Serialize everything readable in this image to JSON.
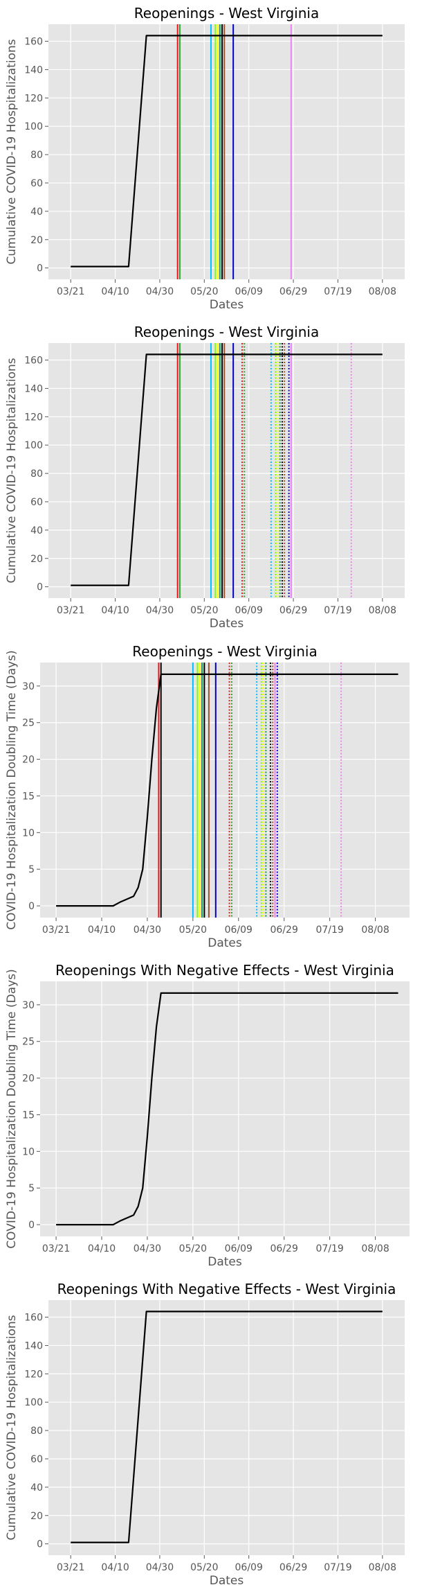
{
  "chart_data": [
    {
      "type": "line",
      "title": "Reopenings - West Virginia",
      "xlabel": "Dates",
      "ylabel": "Cumulative COVID-19 Hospitalizations",
      "xticks": [
        "03/21",
        "04/10",
        "04/30",
        "05/20",
        "06/09",
        "06/29",
        "07/19",
        "08/08"
      ],
      "yticks": [
        "0",
        "20",
        "40",
        "60",
        "80",
        "100",
        "120",
        "140",
        "160"
      ],
      "xlim": [
        -10,
        150
      ],
      "ylim": [
        -8,
        172
      ],
      "grid": true,
      "series": [
        {
          "color": "#000000",
          "points": [
            [
              0,
              1
            ],
            [
              26,
              1
            ],
            [
              34,
              164
            ],
            [
              140,
              164
            ]
          ]
        }
      ],
      "vlines": [
        {
          "x": 48,
          "color": "#e41a1c",
          "style": "solid"
        },
        {
          "x": 49,
          "color": "#2ca02c",
          "style": "solid"
        },
        {
          "x": 63,
          "color": "#00bfff",
          "style": "solid"
        },
        {
          "x": 65,
          "color": "#7fff00",
          "style": "solid"
        },
        {
          "x": 66,
          "color": "#ffff00",
          "style": "solid"
        },
        {
          "x": 67,
          "color": "#1a9850",
          "style": "solid"
        },
        {
          "x": 68,
          "color": "#000000",
          "style": "solid"
        },
        {
          "x": 69,
          "color": "#a0522d",
          "style": "solid"
        },
        {
          "x": 73,
          "color": "#0000cd",
          "style": "solid"
        },
        {
          "x": 99,
          "color": "#ee82ee",
          "style": "solid"
        }
      ]
    },
    {
      "type": "line",
      "title": "Reopenings - West Virginia",
      "xlabel": "Dates",
      "ylabel": "Cumulative COVID-19 Hospitalizations",
      "xticks": [
        "03/21",
        "04/10",
        "04/30",
        "05/20",
        "06/09",
        "06/29",
        "07/19",
        "08/08"
      ],
      "yticks": [
        "0",
        "20",
        "40",
        "60",
        "80",
        "100",
        "120",
        "140",
        "160"
      ],
      "xlim": [
        -10,
        150
      ],
      "ylim": [
        -8,
        172
      ],
      "grid": true,
      "series": [
        {
          "color": "#000000",
          "points": [
            [
              0,
              1
            ],
            [
              26,
              1
            ],
            [
              34,
              164
            ],
            [
              140,
              164
            ]
          ]
        }
      ],
      "vlines": [
        {
          "x": 48,
          "color": "#e41a1c",
          "style": "solid"
        },
        {
          "x": 49,
          "color": "#2ca02c",
          "style": "solid"
        },
        {
          "x": 63,
          "color": "#00bfff",
          "style": "solid"
        },
        {
          "x": 65,
          "color": "#7fff00",
          "style": "solid"
        },
        {
          "x": 66,
          "color": "#ffff00",
          "style": "solid"
        },
        {
          "x": 67,
          "color": "#1a9850",
          "style": "solid"
        },
        {
          "x": 68,
          "color": "#000000",
          "style": "solid"
        },
        {
          "x": 69,
          "color": "#a0522d",
          "style": "solid"
        },
        {
          "x": 73,
          "color": "#0000cd",
          "style": "solid"
        },
        {
          "x": 99,
          "color": "#ee82ee",
          "style": "solid"
        },
        {
          "x": 77,
          "color": "#e41a1c",
          "style": "dotted"
        },
        {
          "x": 78,
          "color": "#2ca02c",
          "style": "dotted"
        },
        {
          "x": 90,
          "color": "#00bfff",
          "style": "dotted"
        },
        {
          "x": 92,
          "color": "#7fff00",
          "style": "dotted"
        },
        {
          "x": 93,
          "color": "#ffff00",
          "style": "dotted"
        },
        {
          "x": 94,
          "color": "#1a9850",
          "style": "dotted"
        },
        {
          "x": 95,
          "color": "#000000",
          "style": "dotted"
        },
        {
          "x": 96,
          "color": "#a0522d",
          "style": "dotted"
        },
        {
          "x": 98,
          "color": "#0000cd",
          "style": "dotted"
        },
        {
          "x": 126,
          "color": "#ee82ee",
          "style": "dotted"
        }
      ]
    },
    {
      "type": "line",
      "title": "Reopenings - West Virginia",
      "xlabel": "Dates",
      "ylabel": "COVID-19 Hospitalization Doubling Time (Days)",
      "xticks": [
        "03/21",
        "04/10",
        "04/30",
        "05/20",
        "06/09",
        "06/29",
        "07/19",
        "08/08"
      ],
      "yticks": [
        "0",
        "5",
        "10",
        "15",
        "20",
        "25",
        "30"
      ],
      "xlim": [
        -7,
        155
      ],
      "ylim": [
        -1.6,
        33.2
      ],
      "grid": true,
      "series": [
        {
          "color": "#000000",
          "points": [
            [
              0,
              0
            ],
            [
              25,
              0
            ],
            [
              28,
              0.5
            ],
            [
              34,
              1.3
            ],
            [
              36,
              2.5
            ],
            [
              38,
              5
            ],
            [
              40,
              12
            ],
            [
              42,
              20
            ],
            [
              44,
              27
            ],
            [
              46,
              31.6
            ],
            [
              150,
              31.6
            ]
          ]
        }
      ],
      "vlines": [
        {
          "x": 45,
          "color": "#e41a1c",
          "style": "solid"
        },
        {
          "x": 46,
          "color": "#000000",
          "style": "solid"
        },
        {
          "x": 60,
          "color": "#00bfff",
          "style": "solid"
        },
        {
          "x": 62,
          "color": "#7fff00",
          "style": "solid"
        },
        {
          "x": 63,
          "color": "#ffff00",
          "style": "solid"
        },
        {
          "x": 64,
          "color": "#1a9850",
          "style": "solid"
        },
        {
          "x": 65,
          "color": "#000000",
          "style": "solid"
        },
        {
          "x": 67,
          "color": "#a0522d",
          "style": "solid"
        },
        {
          "x": 70,
          "color": "#0000cd",
          "style": "solid"
        },
        {
          "x": 96,
          "color": "#ee82ee",
          "style": "solid"
        },
        {
          "x": 76,
          "color": "#e41a1c",
          "style": "dotted"
        },
        {
          "x": 77,
          "color": "#2ca02c",
          "style": "dotted"
        },
        {
          "x": 88,
          "color": "#00bfff",
          "style": "dotted"
        },
        {
          "x": 90,
          "color": "#7fff00",
          "style": "dotted"
        },
        {
          "x": 91,
          "color": "#ffff00",
          "style": "dotted"
        },
        {
          "x": 92,
          "color": "#1a9850",
          "style": "dotted"
        },
        {
          "x": 94,
          "color": "#000000",
          "style": "dotted"
        },
        {
          "x": 95,
          "color": "#a0522d",
          "style": "dotted"
        },
        {
          "x": 97,
          "color": "#0000cd",
          "style": "dotted"
        },
        {
          "x": 125,
          "color": "#ee82ee",
          "style": "dotted"
        }
      ]
    },
    {
      "type": "line",
      "title": "Reopenings With Negative Effects - West Virginia",
      "xlabel": "Dates",
      "ylabel": "COVID-19 Hospitalization Doubling Time (Days)",
      "xticks": [
        "03/21",
        "04/10",
        "04/30",
        "05/20",
        "06/09",
        "06/29",
        "07/19",
        "08/08"
      ],
      "yticks": [
        "0",
        "5",
        "10",
        "15",
        "20",
        "25",
        "30"
      ],
      "xlim": [
        -7,
        155
      ],
      "ylim": [
        -1.6,
        33.2
      ],
      "grid": true,
      "series": [
        {
          "color": "#000000",
          "points": [
            [
              0,
              0
            ],
            [
              25,
              0
            ],
            [
              28,
              0.5
            ],
            [
              34,
              1.3
            ],
            [
              36,
              2.5
            ],
            [
              38,
              5
            ],
            [
              40,
              12
            ],
            [
              42,
              20
            ],
            [
              44,
              27
            ],
            [
              46,
              31.6
            ],
            [
              150,
              31.6
            ]
          ]
        }
      ],
      "vlines": []
    },
    {
      "type": "line",
      "title": "Reopenings With Negative Effects - West Virginia",
      "xlabel": "Dates",
      "ylabel": "Cumulative COVID-19 Hospitalizations",
      "xticks": [
        "03/21",
        "04/10",
        "04/30",
        "05/20",
        "06/09",
        "06/29",
        "07/19",
        "08/08"
      ],
      "yticks": [
        "0",
        "20",
        "40",
        "60",
        "80",
        "100",
        "120",
        "140",
        "160"
      ],
      "xlim": [
        -10,
        150
      ],
      "ylim": [
        -8,
        172
      ],
      "grid": true,
      "series": [
        {
          "color": "#000000",
          "points": [
            [
              0,
              1
            ],
            [
              26,
              1
            ],
            [
              34,
              164
            ],
            [
              140,
              164
            ]
          ]
        }
      ],
      "vlines": []
    }
  ]
}
